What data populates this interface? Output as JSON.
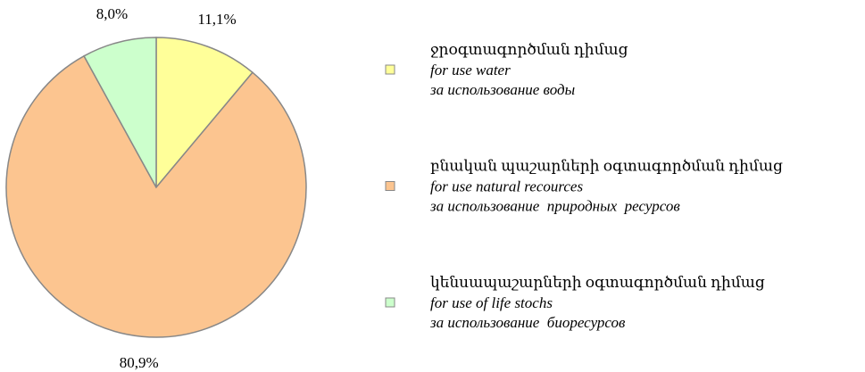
{
  "chart_data": {
    "type": "pie",
    "categories": [
      "ջրօգտագործման դիմաց",
      "բնական պաշարների օգտագործման դիմաց",
      "կենսապաշարների օգտագործման դիմաց"
    ],
    "categories_en": [
      "for use water",
      "for use natural recources",
      "for use of life stochs"
    ],
    "categories_ru": [
      "за использование воды",
      "за использование  природных  ресурсов",
      "за использование  биоресурсов"
    ],
    "values": [
      11.1,
      80.9,
      8.0
    ],
    "value_labels": [
      "11,1%",
      "80,9%",
      "8,0%"
    ],
    "colors": [
      "#ffff99",
      "#fcc590",
      "#ccffcc"
    ],
    "legend": "right"
  }
}
